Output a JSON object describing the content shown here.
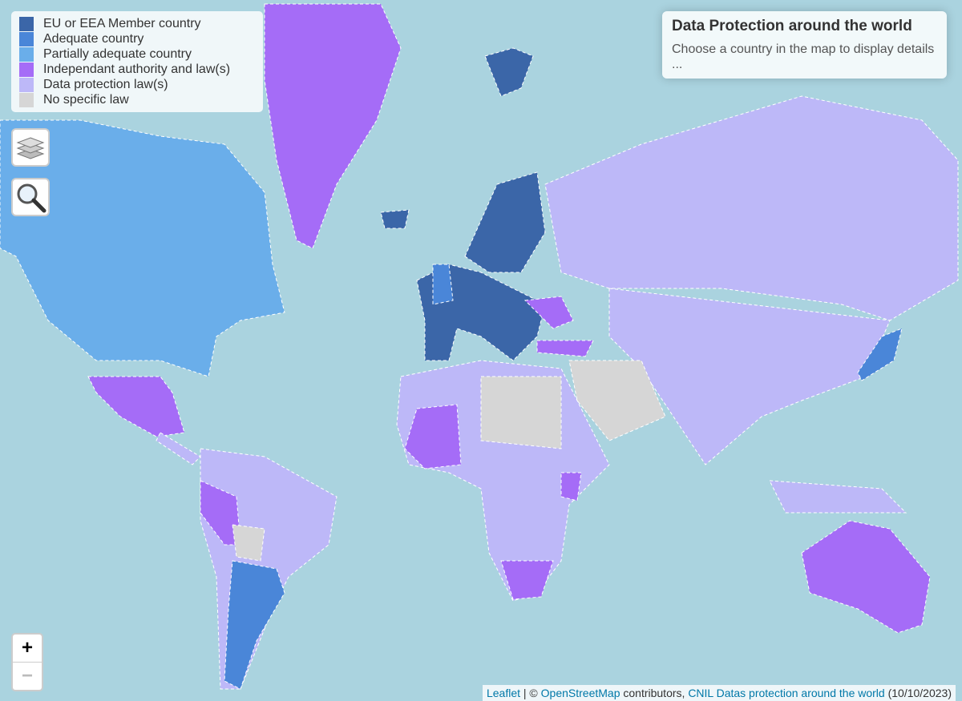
{
  "legend": [
    {
      "label": "EU or EEA Member country",
      "color": "#3b66a8"
    },
    {
      "label": "Adequate country",
      "color": "#4a86d8"
    },
    {
      "label": "Partially adequate country",
      "color": "#6aaeea"
    },
    {
      "label": "Independant authority and law(s)",
      "color": "#a56cf7"
    },
    {
      "label": "Data protection law(s)",
      "color": "#bdb8f8"
    },
    {
      "label": "No specific law",
      "color": "#d6d6d6"
    }
  ],
  "info": {
    "title": "Data Protection around the world",
    "text": "Choose a country in the map to display details ..."
  },
  "zoom": {
    "in": "+",
    "out": "−"
  },
  "attribution": {
    "leaflet": "Leaflet",
    "separator": "| ©",
    "osm": "OpenStreetMap",
    "contributors": "contributors,",
    "cnil": "CNIL Datas protection around the world",
    "date": "(10/10/2023)"
  }
}
